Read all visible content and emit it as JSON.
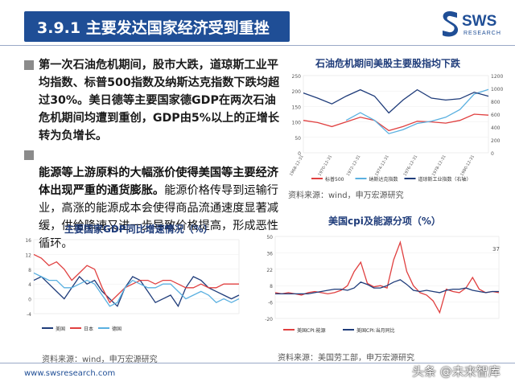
{
  "header": {
    "title": "3.9.1 主要发达国家经济受到重挫",
    "logo_text": "SWS",
    "logo_sub": "RESEARCH"
  },
  "body": {
    "para1": "第一次石油危机期间，股市大跌，道琼斯工业平均指数、标普500指数及纳斯达克指数下跌均超过30%。美日德等主要国家德GDP在两次石油危机期间均遭到重创，GDP由5%以上的正增长转为负增长。",
    "para2_bold": "能源等上游原料的大幅涨价使得美国等主要经济体出现严重的通货膨胀。",
    "para2_rest": "能源价格传导到运输行业，高涨的能源成本会使得商品流通速度显著减缓，供给降速又进一步导致价格提高，形成恶性循环。"
  },
  "charts": {
    "stock": {
      "title": "石油危机期间美股主要股指均下跌",
      "source": "资料来源：wind，申万宏源研究",
      "legend": [
        "标普500",
        "纳斯达克指数",
        "道琼斯工业指数（右轴）"
      ],
      "colors": [
        "#e04040",
        "#5ab0e0",
        "#1f3c7a"
      ]
    },
    "gdp": {
      "title": "主要国家GDP同比增速情况（%）",
      "source": "资料来源：wind，申万宏源研究",
      "legend": [
        "美国",
        "日本",
        "德国"
      ],
      "colors": [
        "#1f3c7a",
        "#e04040",
        "#5ab0e0"
      ]
    },
    "cpi": {
      "title": "美国cpi及能源分项（%）",
      "source": "资料来源：美国劳工部，申万宏源研究",
      "legend": [
        "美国CPI:能源",
        "美国CPI:当月同比"
      ],
      "colors": [
        "#e04040",
        "#1f3c7a"
      ]
    }
  },
  "chart_data": [
    {
      "type": "line",
      "title": "石油危机期间美股主要股指均下跌",
      "x": [
        "1968-12-31",
        "1969-12-31",
        "1970-12-31",
        "1971-12-31",
        "1972-12-31",
        "1973-12-31",
        "1974-12-31",
        "1975-12-31",
        "1976-12-31",
        "1977-12-31",
        "1978-12-31",
        "1979-12-31",
        "1980-12-31",
        "1981-12-31"
      ],
      "ylim_left": [
        0,
        250
      ],
      "ylim_right": [
        0,
        1200
      ],
      "series": [
        {
          "name": "标普500",
          "values": [
            105,
            98,
            85,
            100,
            115,
            105,
            72,
            85,
            102,
            100,
            96,
            105,
            125,
            122
          ]
        },
        {
          "name": "纳斯达克指数",
          "values": [
            null,
            null,
            null,
            105,
            130,
            105,
            62,
            75,
            95,
            102,
            115,
            140,
            190,
            205
          ]
        },
        {
          "name": "道琼斯工业指数（右轴）",
          "values": [
            930,
            850,
            760,
            880,
            980,
            880,
            620,
            820,
            980,
            850,
            820,
            840,
            940,
            880
          ]
        }
      ]
    },
    {
      "type": "line",
      "title": "主要国家GDP同比增速情况（%）",
      "ylim": [
        -4,
        16
      ],
      "series": [
        {
          "name": "美国",
          "values": [
            5,
            6,
            4,
            2,
            0,
            3,
            6,
            4,
            5,
            2,
            0,
            -2,
            3,
            6,
            5,
            2,
            -1,
            0,
            1,
            -2,
            3,
            6,
            5,
            3,
            2,
            1,
            0,
            1
          ]
        },
        {
          "name": "日本",
          "values": [
            12,
            11,
            9,
            10,
            8,
            5,
            7,
            9,
            8,
            3,
            -1,
            1,
            3,
            4,
            5,
            5,
            4,
            5,
            5,
            4,
            3,
            3,
            4,
            3,
            3,
            4,
            4,
            4
          ]
        },
        {
          "name": "德国",
          "values": [
            7,
            6,
            5,
            5,
            3,
            3,
            4,
            5,
            4,
            1,
            -2,
            -1,
            3,
            5,
            4,
            3,
            3,
            4,
            4,
            2,
            0,
            1,
            2,
            1,
            -1,
            0,
            -1,
            0
          ]
        }
      ]
    },
    {
      "type": "line",
      "title": "美国cpi及能源分项（%）",
      "ylim": [
        -20,
        50
      ],
      "series": [
        {
          "name": "美国CPI:能源",
          "values": [
            2,
            1,
            2,
            1,
            0,
            2,
            3,
            2,
            1,
            2,
            4,
            8,
            20,
            28,
            10,
            7,
            8,
            6,
            30,
            45,
            20,
            8,
            2,
            0,
            -5,
            -15,
            5,
            3,
            2,
            6,
            15,
            5,
            2,
            3,
            2
          ]
        },
        {
          "name": "美国CPI:当月同比",
          "values": [
            1,
            1,
            1,
            1,
            1,
            1,
            2,
            3,
            4,
            5,
            5,
            4,
            6,
            11,
            9,
            6,
            6,
            8,
            11,
            13,
            9,
            4,
            3,
            4,
            3,
            2,
            4,
            5,
            5,
            6,
            4,
            3,
            2,
            3,
            3
          ]
        }
      ]
    }
  ],
  "footer": {
    "url": "www.swsresearch.com",
    "page_num": "37",
    "watermark": "头条 @未来智库"
  }
}
